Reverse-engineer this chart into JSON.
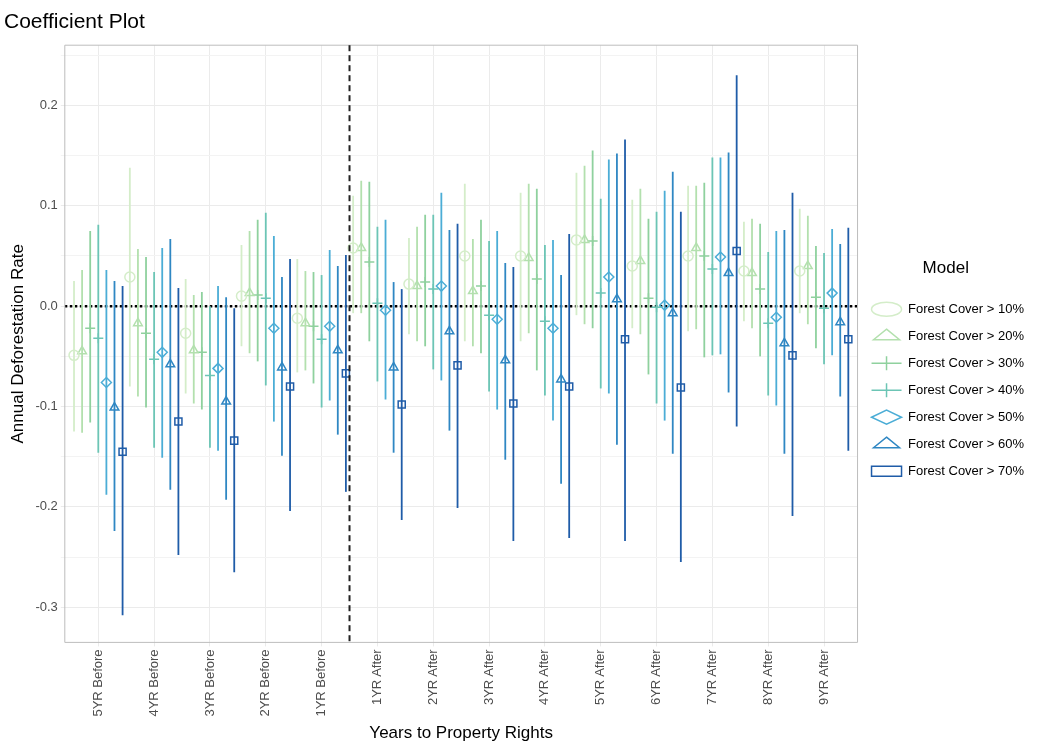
{
  "chart_data": {
    "type": "scatter",
    "title": "Coefficient Plot",
    "xlabel": "Years to Property Rights",
    "ylabel": "Annual Deforestation Rate",
    "legend_title": "Model",
    "categories": [
      "5YR Before",
      "4YR Before",
      "3YR Before",
      "2YR Before",
      "1YR Before",
      "1YR After",
      "2YR After",
      "3YR After",
      "4YR After",
      "5YR After",
      "6YR After",
      "7YR After",
      "8YR After",
      "9YR After"
    ],
    "ylim": [
      -0.335,
      0.26
    ],
    "yticks": [
      {
        "value": -0.3,
        "label": "-0.3"
      },
      {
        "value": -0.25,
        "label": null
      },
      {
        "value": -0.2,
        "label": "-0.2"
      },
      {
        "value": -0.15,
        "label": null
      },
      {
        "value": -0.1,
        "label": "-0.1"
      },
      {
        "value": -0.05,
        "label": null
      },
      {
        "value": 0,
        "label": "0.0"
      },
      {
        "value": 0.05,
        "label": null
      },
      {
        "value": 0.1,
        "label": "0.1"
      },
      {
        "value": 0.15,
        "label": null
      },
      {
        "value": 0.2,
        "label": "0.2"
      },
      {
        "value": 0.25,
        "label": null
      }
    ],
    "grid": true,
    "legend": "right",
    "ref_lines": [
      {
        "axis": "y",
        "value": 0,
        "color": "#000000",
        "line_style": "dotted"
      }
    ],
    "series": [
      {
        "name": "Forest Cover > 10%",
        "color": "#d4edc9",
        "marker": "circle",
        "values": [
          -0.049,
          0.029,
          -0.027,
          0.01,
          -0.012,
          0.058,
          0.022,
          0.05,
          0.05,
          0.066,
          0.04,
          0.05,
          0.035,
          0.035
        ],
        "errors": [
          [
            -0.125,
            0.025
          ],
          [
            -0.08,
            0.138
          ],
          [
            -0.087,
            0.027
          ],
          [
            -0.04,
            0.061
          ],
          [
            -0.066,
            0.047
          ],
          [
            -0.007,
            0.11
          ],
          [
            -0.028,
            0.068
          ],
          [
            -0.035,
            0.122
          ],
          [
            -0.035,
            0.113
          ],
          [
            -0.009,
            0.133
          ],
          [
            -0.022,
            0.106
          ],
          [
            -0.025,
            0.12
          ],
          [
            -0.015,
            0.084
          ],
          [
            -0.007,
            0.097
          ]
        ]
      },
      {
        "name": "Forest Cover > 20%",
        "color": "#b3e0ae",
        "marker": "triangle",
        "values": [
          -0.045,
          -0.017,
          -0.044,
          0.013,
          -0.017,
          0.058,
          0.02,
          0.015,
          0.048,
          0.066,
          0.045,
          0.058,
          0.033,
          0.04
        ],
        "errors": [
          [
            -0.126,
            0.036
          ],
          [
            -0.09,
            0.057
          ],
          [
            -0.097,
            0.011
          ],
          [
            -0.047,
            0.075
          ],
          [
            -0.064,
            0.035
          ],
          [
            -0.007,
            0.125
          ],
          [
            -0.035,
            0.079
          ],
          [
            -0.04,
            0.067
          ],
          [
            -0.027,
            0.122
          ],
          [
            -0.018,
            0.14
          ],
          [
            -0.028,
            0.117
          ],
          [
            -0.023,
            0.12
          ],
          [
            -0.022,
            0.087
          ],
          [
            -0.018,
            0.09
          ]
        ]
      },
      {
        "name": "Forest Cover > 30%",
        "color": "#8fd19e",
        "marker": "cross",
        "values": [
          -0.022,
          -0.027,
          -0.046,
          0.011,
          -0.02,
          0.044,
          0.024,
          0.02,
          0.027,
          0.065,
          0.008,
          0.05,
          0.017,
          0.009
        ],
        "errors": [
          [
            -0.116,
            0.075
          ],
          [
            -0.101,
            0.049
          ],
          [
            -0.103,
            0.014
          ],
          [
            -0.055,
            0.086
          ],
          [
            -0.077,
            0.034
          ],
          [
            -0.035,
            0.124
          ],
          [
            -0.04,
            0.091
          ],
          [
            -0.047,
            0.086
          ],
          [
            -0.064,
            0.117
          ],
          [
            -0.022,
            0.155
          ],
          [
            -0.068,
            0.087
          ],
          [
            -0.051,
            0.123
          ],
          [
            -0.05,
            0.082
          ],
          [
            -0.042,
            0.06
          ]
        ]
      },
      {
        "name": "Forest Cover > 40%",
        "color": "#6cc5b5",
        "marker": "cross",
        "values": [
          -0.032,
          -0.053,
          -0.069,
          0.008,
          -0.033,
          0.003,
          0.017,
          -0.009,
          -0.015,
          0.013,
          -0.001,
          0.037,
          -0.017,
          -0.002
        ],
        "errors": [
          [
            -0.146,
            0.081
          ],
          [
            -0.141,
            0.034
          ],
          [
            -0.141,
            0.0
          ],
          [
            -0.079,
            0.093
          ],
          [
            -0.101,
            0.031
          ],
          [
            -0.075,
            0.079
          ],
          [
            -0.063,
            0.091
          ],
          [
            -0.085,
            0.065
          ],
          [
            -0.089,
            0.061
          ],
          [
            -0.082,
            0.107
          ],
          [
            -0.097,
            0.094
          ],
          [
            -0.049,
            0.148
          ],
          [
            -0.089,
            0.054
          ],
          [
            -0.058,
            0.053
          ]
        ]
      },
      {
        "name": "Forest Cover > 50%",
        "color": "#4badd6",
        "marker": "diamond",
        "values": [
          -0.076,
          -0.046,
          -0.062,
          -0.022,
          -0.02,
          -0.004,
          0.02,
          -0.013,
          -0.022,
          0.029,
          0.001,
          0.049,
          -0.011,
          0.013
        ],
        "errors": [
          [
            -0.188,
            0.036
          ],
          [
            -0.151,
            0.058
          ],
          [
            -0.144,
            0.02
          ],
          [
            -0.115,
            0.07
          ],
          [
            -0.094,
            0.056
          ],
          [
            -0.093,
            0.086
          ],
          [
            -0.074,
            0.113
          ],
          [
            -0.103,
            0.075
          ],
          [
            -0.114,
            0.066
          ],
          [
            -0.087,
            0.146
          ],
          [
            -0.114,
            0.115
          ],
          [
            -0.048,
            0.148
          ],
          [
            -0.099,
            0.075
          ],
          [
            -0.049,
            0.077
          ]
        ]
      },
      {
        "name": "Forest Cover > 60%",
        "color": "#2f87c3",
        "marker": "triangle",
        "values": [
          -0.101,
          -0.058,
          -0.095,
          -0.061,
          -0.044,
          -0.061,
          -0.025,
          -0.054,
          -0.073,
          0.007,
          -0.007,
          0.033,
          -0.037,
          -0.016
        ],
        "errors": [
          [
            -0.224,
            0.025
          ],
          [
            -0.183,
            0.067
          ],
          [
            -0.193,
            0.009
          ],
          [
            -0.149,
            0.029
          ],
          [
            -0.128,
            0.04
          ],
          [
            -0.146,
            0.024
          ],
          [
            -0.124,
            0.076
          ],
          [
            -0.153,
            0.043
          ],
          [
            -0.177,
            0.031
          ],
          [
            -0.138,
            0.152
          ],
          [
            -0.147,
            0.134
          ],
          [
            -0.086,
            0.153
          ],
          [
            -0.147,
            0.076
          ],
          [
            -0.09,
            0.062
          ]
        ]
      },
      {
        "name": "Forest Cover > 70%",
        "color": "#1f5ca8",
        "marker": "square",
        "values": [
          -0.145,
          -0.115,
          -0.134,
          -0.08,
          -0.067,
          -0.098,
          -0.059,
          -0.097,
          -0.08,
          -0.033,
          -0.081,
          0.055,
          -0.049,
          -0.033
        ],
        "errors": [
          [
            -0.308,
            0.02
          ],
          [
            -0.248,
            0.018
          ],
          [
            -0.265,
            -0.002
          ],
          [
            -0.204,
            0.047
          ],
          [
            -0.185,
            0.051
          ],
          [
            -0.213,
            0.017
          ],
          [
            -0.201,
            0.082
          ],
          [
            -0.234,
            0.039
          ],
          [
            -0.231,
            0.072
          ],
          [
            -0.234,
            0.166
          ],
          [
            -0.255,
            0.094
          ],
          [
            -0.12,
            0.23
          ],
          [
            -0.209,
            0.113
          ],
          [
            -0.144,
            0.078
          ]
        ]
      }
    ]
  }
}
